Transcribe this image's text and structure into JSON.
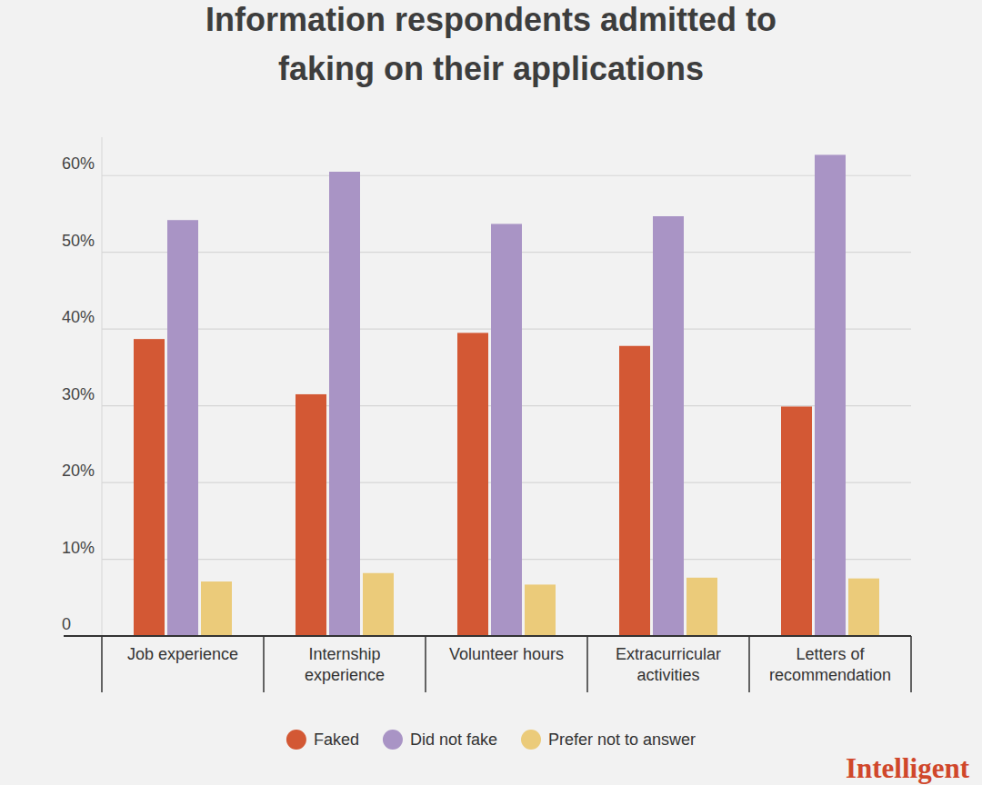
{
  "chart_data": {
    "type": "bar",
    "title": "Information respondents admitted to faking on their applications",
    "categories": [
      "Job experience",
      "Internship experience",
      "Volunteer hours",
      "Extracurricular activities",
      "Letters of recommendation"
    ],
    "series": [
      {
        "name": "Faked",
        "color": "#d35834",
        "values": [
          38.7,
          31.5,
          39.5,
          37.8,
          29.9
        ]
      },
      {
        "name": "Did not fake",
        "color": "#a994c5",
        "values": [
          54.2,
          60.5,
          53.7,
          54.7,
          62.7
        ]
      },
      {
        "name": "Prefer not to answer",
        "color": "#ebcb7a",
        "values": [
          7.1,
          8.2,
          6.7,
          7.6,
          7.5
        ]
      }
    ],
    "ylim": [
      0,
      65
    ],
    "yticks": [
      0,
      {
        "value": 10,
        "label": "10%"
      },
      {
        "value": 20,
        "label": "20%"
      },
      {
        "value": 30,
        "label": "30%"
      },
      {
        "value": 40,
        "label": "40%"
      },
      {
        "value": 50,
        "label": "50%"
      },
      {
        "value": 60,
        "label": "60%"
      }
    ],
    "grid": true,
    "legend": "bottom",
    "annotation": "Intelligent"
  }
}
